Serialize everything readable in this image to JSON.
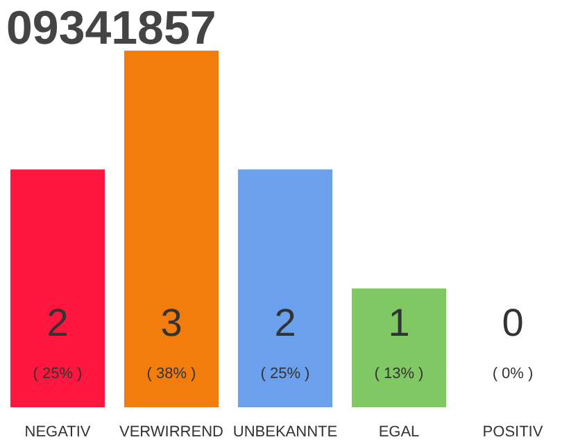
{
  "chart_data": {
    "type": "bar",
    "title": "09341857",
    "categories": [
      "NEGATIV",
      "VERWIRREND",
      "UNBEKANNTE",
      "EGAL",
      "POSITIV"
    ],
    "values": [
      2,
      3,
      2,
      1,
      0
    ],
    "colors": [
      "#ff163e",
      "#f27d0c",
      "#6aa0ec",
      "#80c864",
      "#dcdcdc"
    ],
    "tick_labels": "x",
    "grid": false,
    "data_labels": true,
    "annotations": [
      "( 25% )",
      "( 38% )",
      "( 25% )",
      "( 13% )",
      "( 0% )"
    ]
  }
}
